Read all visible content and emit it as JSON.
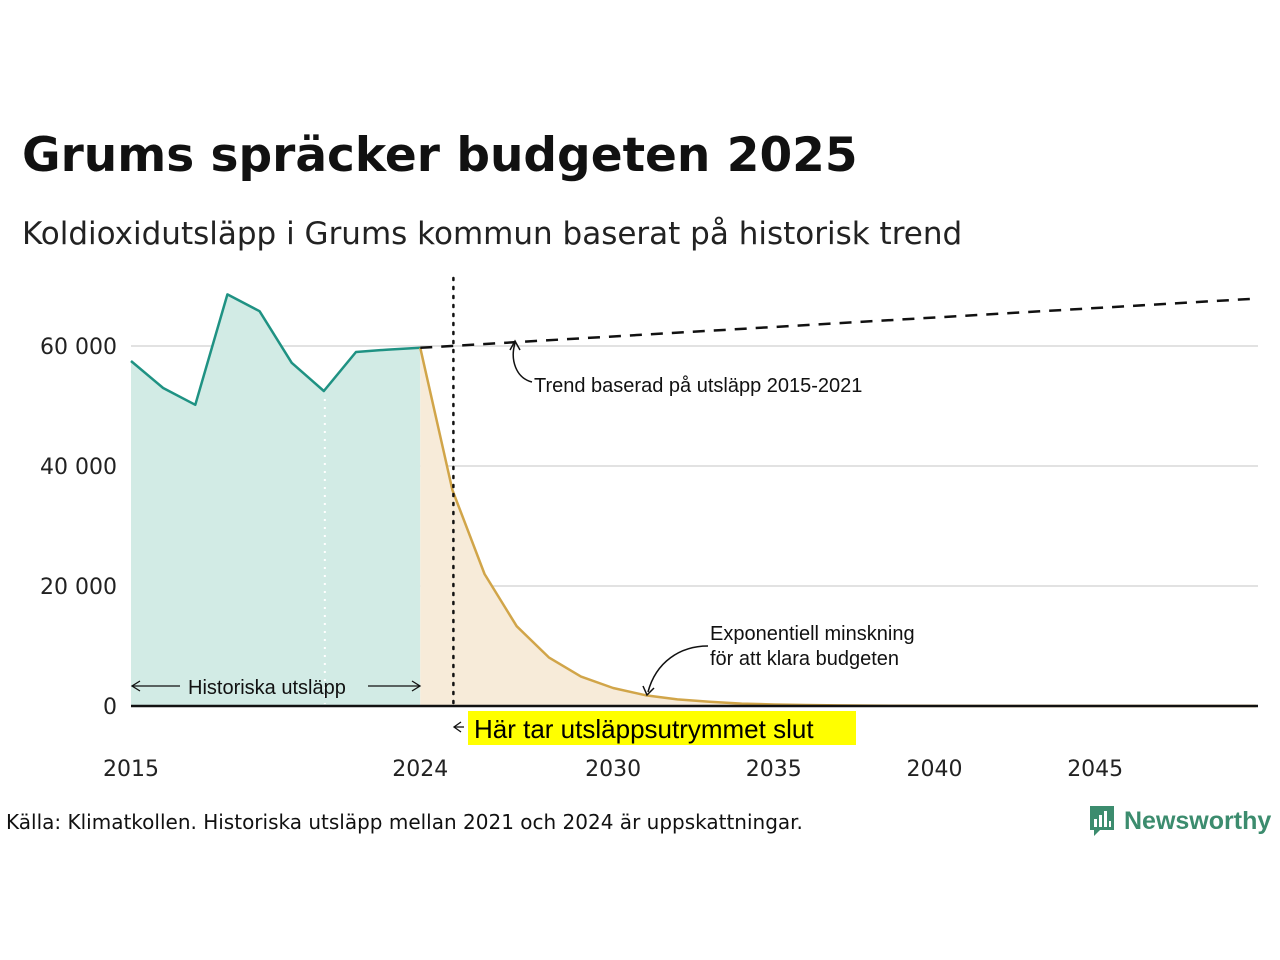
{
  "title": "Grums spräcker budgeten 2025",
  "subtitle": "Koldioxidutsläpp i Grums kommun baserat på historisk trend",
  "footer": {
    "source": "Källa: Klimatkollen. Historiska utsläpp mellan 2021 och 2024 är uppskattningar.",
    "brand": "Newsworthy"
  },
  "annotations": {
    "trend": "Trend baserad på utsläpp 2015-2021",
    "decline_line1": "Exponentiell minskning",
    "decline_line2": "för att klara budgeten",
    "historical": "Historiska utsläpp",
    "budget_end": "Här tar utsläppsutrymmet slut"
  },
  "colors": {
    "historical_line": "#1f9283",
    "historical_fill": "#d2ebe5",
    "decline_line": "#d1a549",
    "decline_fill": "#f7ebd9",
    "highlight": "#ffff00",
    "brand": "#3c8c6e"
  },
  "chart_data": {
    "type": "line",
    "xlim": [
      2015,
      2050
    ],
    "ylim": [
      0,
      70000
    ],
    "x_ticks": [
      2015,
      2024,
      2030,
      2035,
      2040,
      2045
    ],
    "y_ticks": [
      0,
      20000,
      40000,
      60000
    ],
    "y_tick_labels": [
      "0",
      "20 000",
      "40 000",
      "60 000"
    ],
    "grid": "horizontal",
    "budget_end_year": 2025,
    "series": [
      {
        "key": "historical",
        "style": "solid line with filled area",
        "x": [
          2015,
          2016,
          2017,
          2018,
          2019,
          2020,
          2021,
          2022,
          2023,
          2024
        ],
        "y": [
          57500,
          53000,
          50200,
          68600,
          65800,
          57200,
          52500,
          59000,
          59400,
          59700
        ]
      },
      {
        "key": "decline",
        "style": "solid line with filled area",
        "x": [
          2024,
          2025,
          2026,
          2027,
          2028,
          2029,
          2030,
          2031,
          2032,
          2033,
          2034,
          2035,
          2036,
          2037,
          2038,
          2039,
          2040,
          2042,
          2045,
          2050
        ],
        "y": [
          59700,
          36000,
          22000,
          13300,
          8100,
          4900,
          3000,
          1800,
          1100,
          700,
          400,
          260,
          160,
          100,
          60,
          35,
          20,
          8,
          2,
          0
        ]
      },
      {
        "key": "trend",
        "style": "dashed",
        "x": [
          2024,
          2050
        ],
        "y": [
          59700,
          67900
        ]
      }
    ]
  }
}
